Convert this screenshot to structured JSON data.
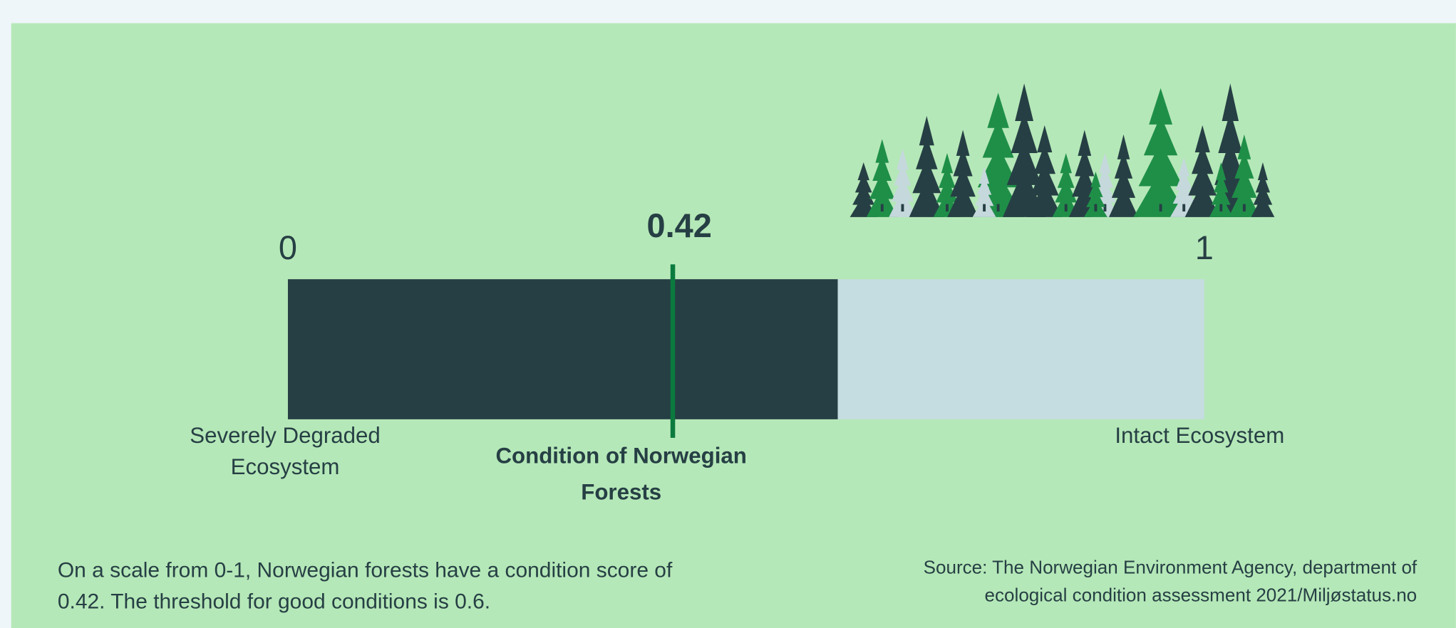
{
  "chart_data": {
    "type": "gauge",
    "value": 0.42,
    "threshold": 0.6,
    "xlim": [
      0,
      1
    ],
    "xticks": [
      0,
      1
    ],
    "min_label": [
      "Severely Degraded",
      "Ecosystem"
    ],
    "max_label": "Intact Ecosystem",
    "title": [
      "Condition of Norwegian",
      "Forests"
    ],
    "note": [
      "On a scale from 0-1, Norwegian forests have a condition score of",
      "0.42. The threshold for good conditions is 0.6."
    ],
    "source": [
      "Source: The Norwegian Environment Agency, department of",
      "ecological condition assessment 2021/Miljøstatus.no"
    ],
    "color": "#263f44",
    "track_color": "#c5dde0",
    "marker_color": "#0b7a3e"
  }
}
